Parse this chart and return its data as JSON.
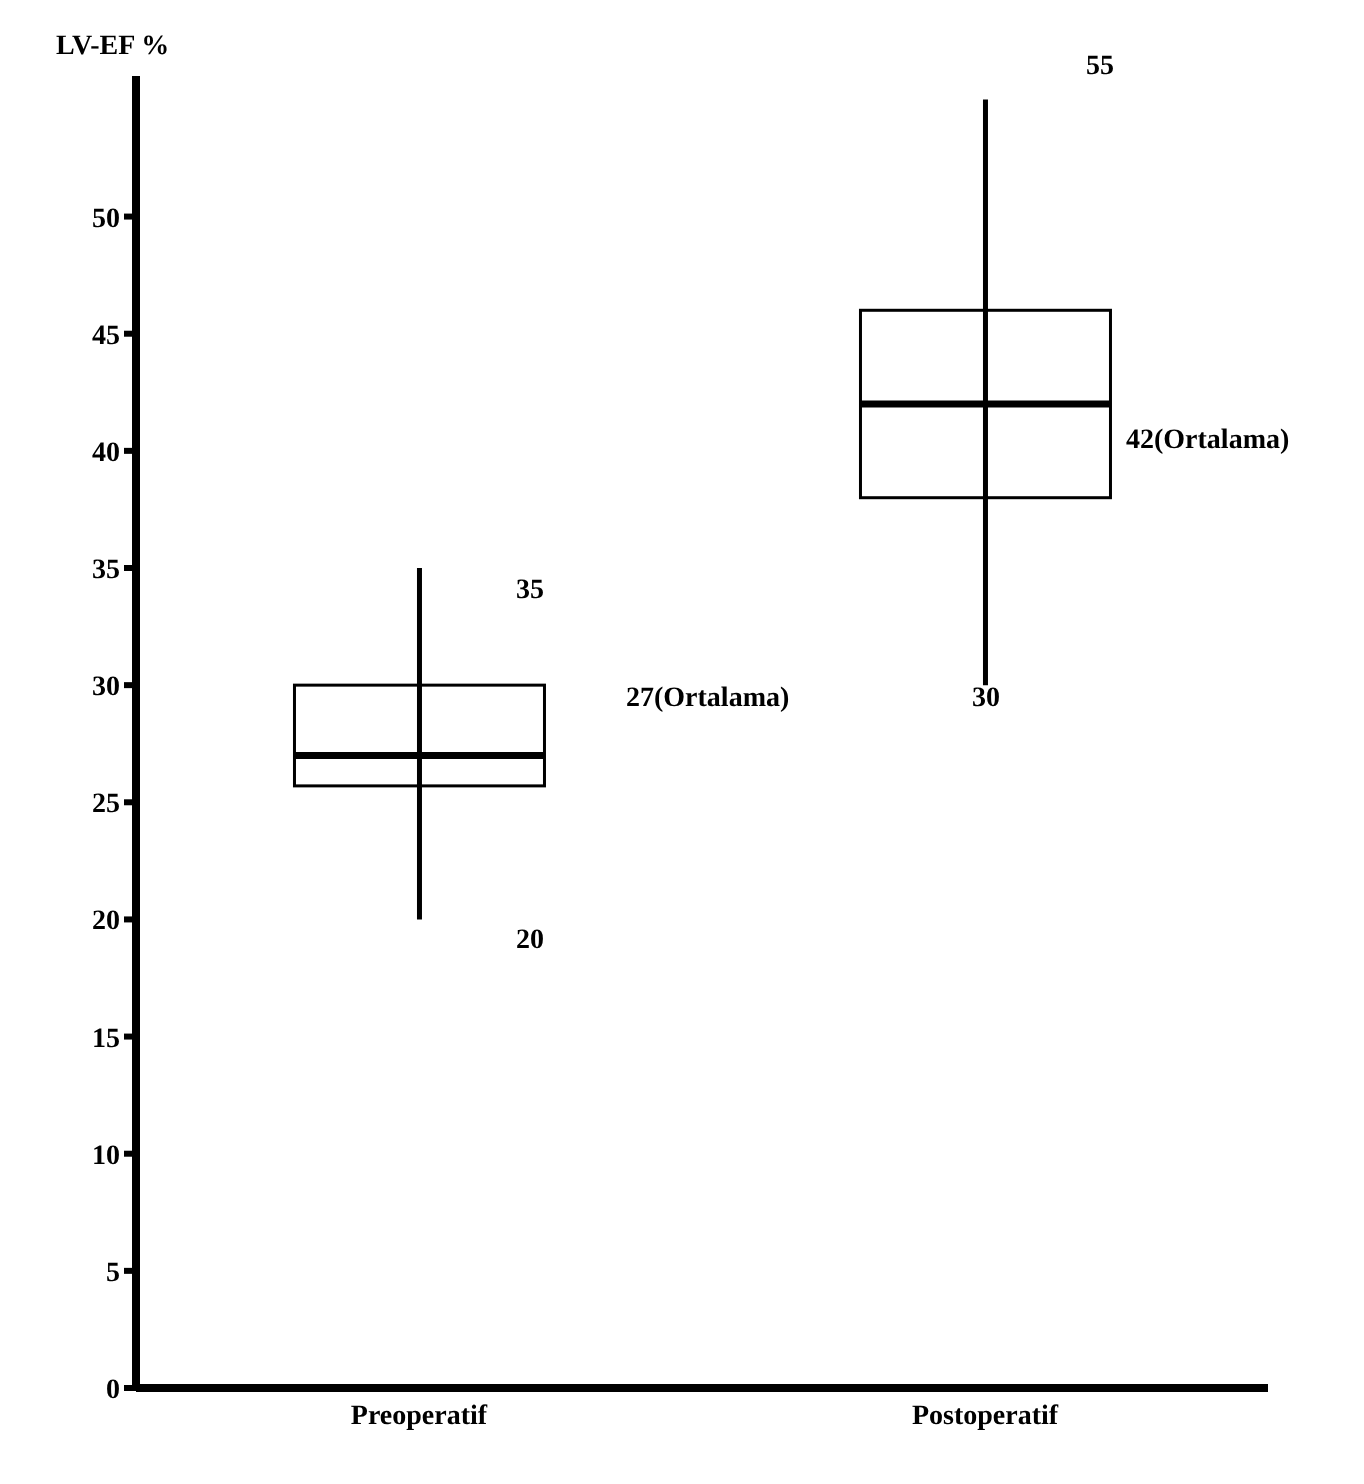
{
  "chart_data": {
    "type": "box",
    "ylabel": "LV-EF %",
    "categories": [
      "Preoperatif",
      "Postoperatif"
    ],
    "boxes": [
      {
        "low": 20,
        "q1": 25.7,
        "median": 27,
        "q3": 30,
        "high": 35
      },
      {
        "low": 30,
        "q1": 38,
        "median": 42,
        "q3": 46,
        "high": 55
      }
    ],
    "ylim": [
      0,
      56
    ],
    "yticks": [
      0,
      5,
      10,
      15,
      20,
      25,
      30,
      35,
      40,
      45,
      50
    ],
    "grid": false,
    "annotations": [
      "35",
      "20",
      "27(Ortalama)",
      "55",
      "30",
      "42(Ortalama)"
    ]
  }
}
